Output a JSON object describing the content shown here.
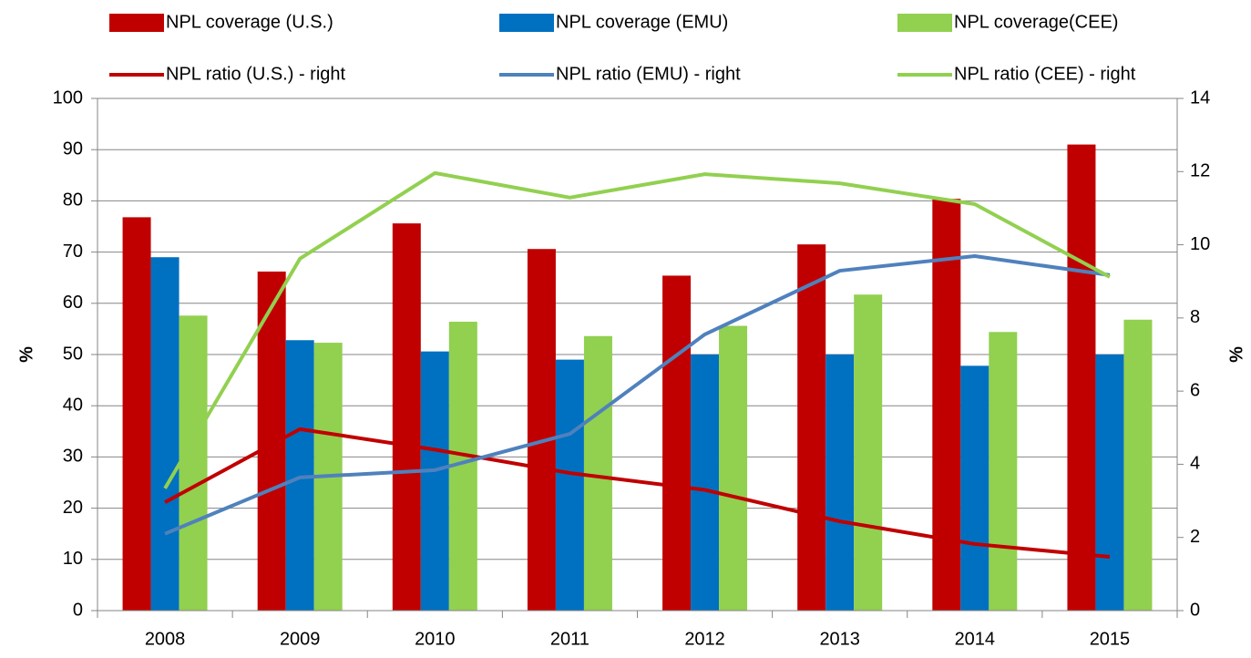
{
  "chart_data": {
    "type": "combo",
    "categories": [
      "2008",
      "2009",
      "2010",
      "2011",
      "2012",
      "2013",
      "2014",
      "2015"
    ],
    "series": [
      {
        "name": "NPL coverage (U.S.)",
        "type": "bar",
        "color": "#c00000",
        "values": [
          76.8,
          66.2,
          75.6,
          70.6,
          65.4,
          71.5,
          80.4,
          91
        ]
      },
      {
        "name": "NPL coverage (EMU)",
        "type": "bar",
        "color": "#0070c0",
        "values": [
          69,
          52.8,
          50.6,
          49,
          50,
          50,
          47.8,
          50
        ]
      },
      {
        "name": "NPL coverage(CEE)",
        "type": "bar",
        "color": "#92d050",
        "values": [
          57.6,
          52.3,
          56.4,
          53.6,
          55.6,
          61.7,
          54.4,
          56.8
        ]
      },
      {
        "name": "NPL ratio (U.S.) - right",
        "type": "line",
        "axis": "y2",
        "color": "#c00000",
        "values": [
          2.96,
          4.96,
          4.4,
          3.76,
          3.3,
          2.44,
          1.82,
          1.47
        ]
      },
      {
        "name": "NPL ratio (EMU) - right",
        "type": "line",
        "axis": "y2",
        "color": "#4f81bd",
        "values": [
          2.1,
          3.64,
          3.84,
          4.83,
          7.55,
          9.29,
          9.69,
          9.17
        ]
      },
      {
        "name": "NPL ratio (CEE) - right",
        "type": "line",
        "axis": "y2",
        "color": "#92d050",
        "values": [
          3.34,
          9.62,
          11.96,
          11.29,
          11.93,
          11.68,
          11.11,
          9.12
        ]
      }
    ],
    "ylabel": "%",
    "y2label": "%",
    "ylim": [
      0,
      100
    ],
    "yticks": [
      0,
      10,
      20,
      30,
      40,
      50,
      60,
      70,
      80,
      90,
      100
    ],
    "y2lim": [
      0,
      14
    ],
    "y2ticks": [
      0,
      2,
      4,
      6,
      8,
      10,
      12,
      14
    ],
    "grid": true
  }
}
